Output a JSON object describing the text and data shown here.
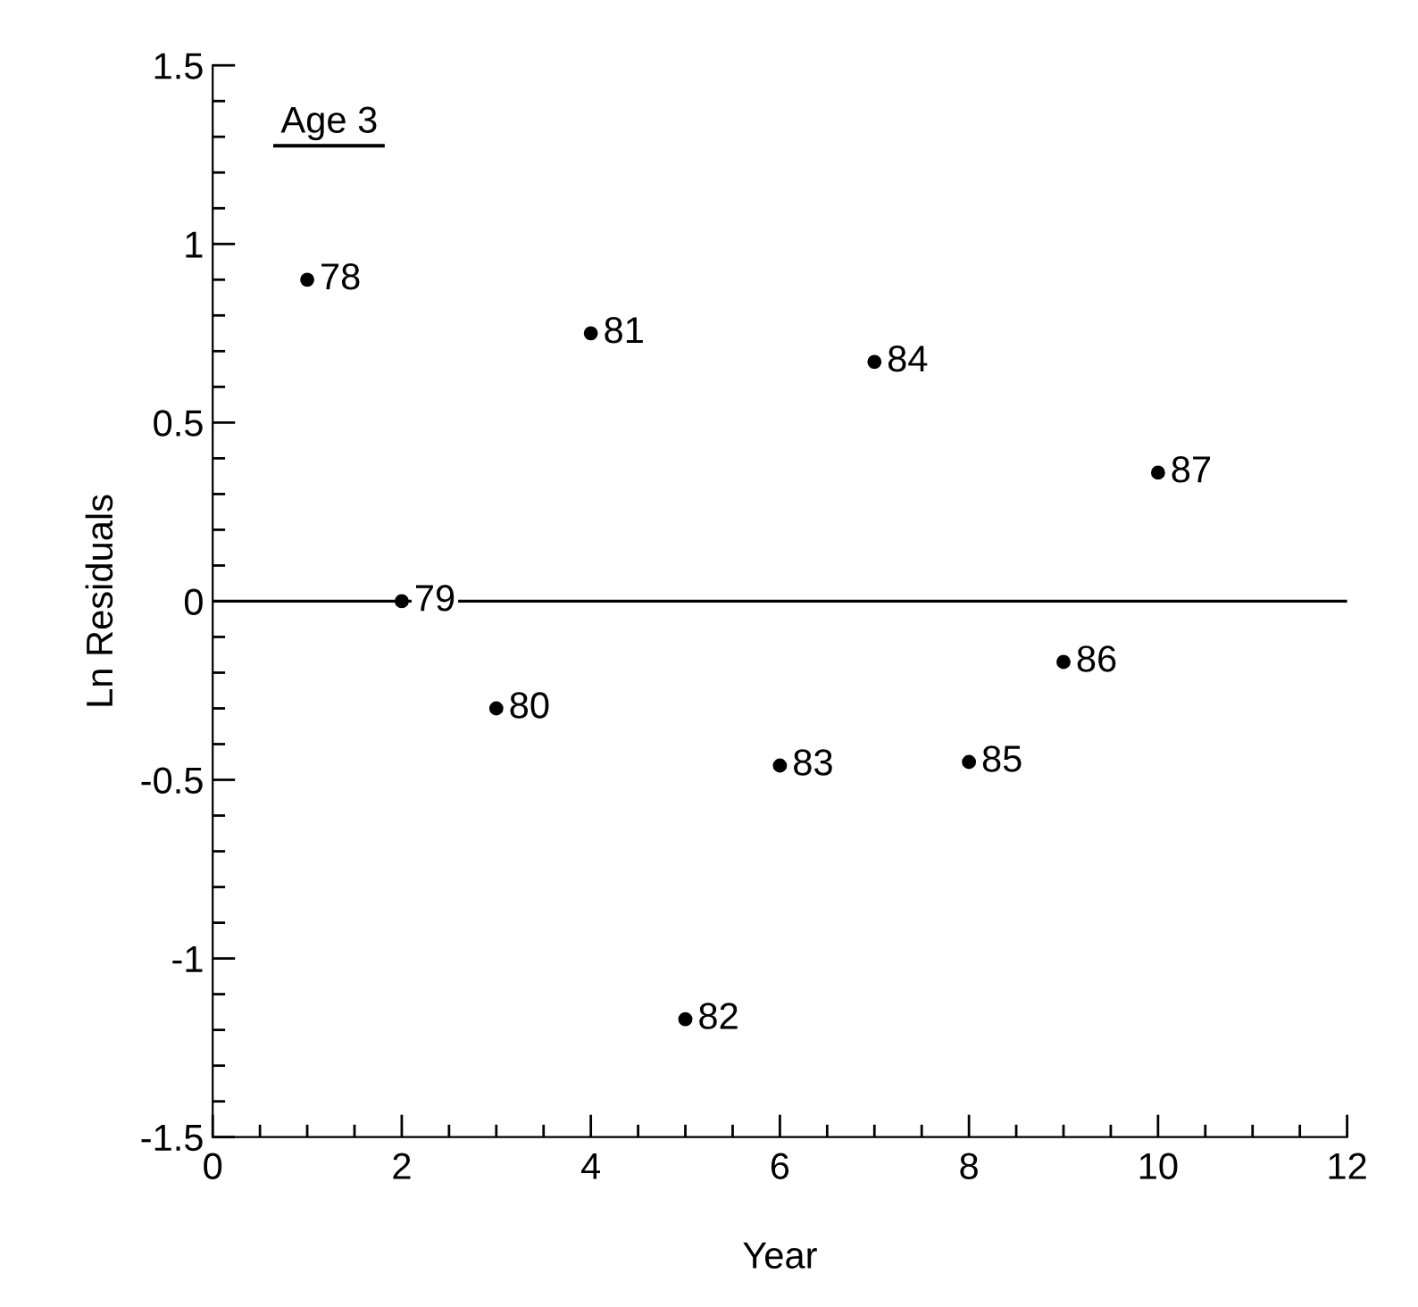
{
  "chart_data": {
    "type": "scatter",
    "xlabel": "Year",
    "ylabel": "Ln Residuals",
    "annotations": [
      "Age 3",
      {
        "text": "78",
        "x": 1,
        "y": 0.9
      },
      {
        "text": "79",
        "x": 2,
        "y": 0.0
      },
      {
        "text": "80",
        "x": 3,
        "y": -0.3
      },
      {
        "text": "81",
        "x": 4,
        "y": 0.75
      },
      {
        "text": "82",
        "x": 5,
        "y": -1.17
      },
      {
        "text": "83",
        "x": 6,
        "y": -0.46
      },
      {
        "text": "84",
        "x": 7,
        "y": 0.67
      },
      {
        "text": "85",
        "x": 8,
        "y": -0.45
      },
      {
        "text": "86",
        "x": 9,
        "y": -0.17
      },
      {
        "text": "87",
        "x": 10,
        "y": 0.36
      }
    ],
    "x": [
      1,
      2,
      3,
      4,
      5,
      6,
      7,
      8,
      9,
      10
    ],
    "series": [
      {
        "color": "#000000",
        "values": [
          0.9,
          0.0,
          -0.3,
          0.75,
          -1.17,
          -0.46,
          0.67,
          -0.45,
          -0.17,
          0.36
        ]
      }
    ],
    "xlim": [
      0,
      12
    ],
    "xticks": [
      0,
      2,
      4,
      6,
      8,
      10,
      12
    ],
    "ylim": [
      -1.5,
      1.5
    ],
    "yticks": [
      -1.5,
      -1,
      -0.5,
      0,
      0.5,
      1,
      1.5
    ],
    "ref_lines": [
      {
        "axis": "y",
        "value": 0,
        "color": "#000000"
      }
    ],
    "marker": "circle",
    "grid": false,
    "legend": false
  }
}
